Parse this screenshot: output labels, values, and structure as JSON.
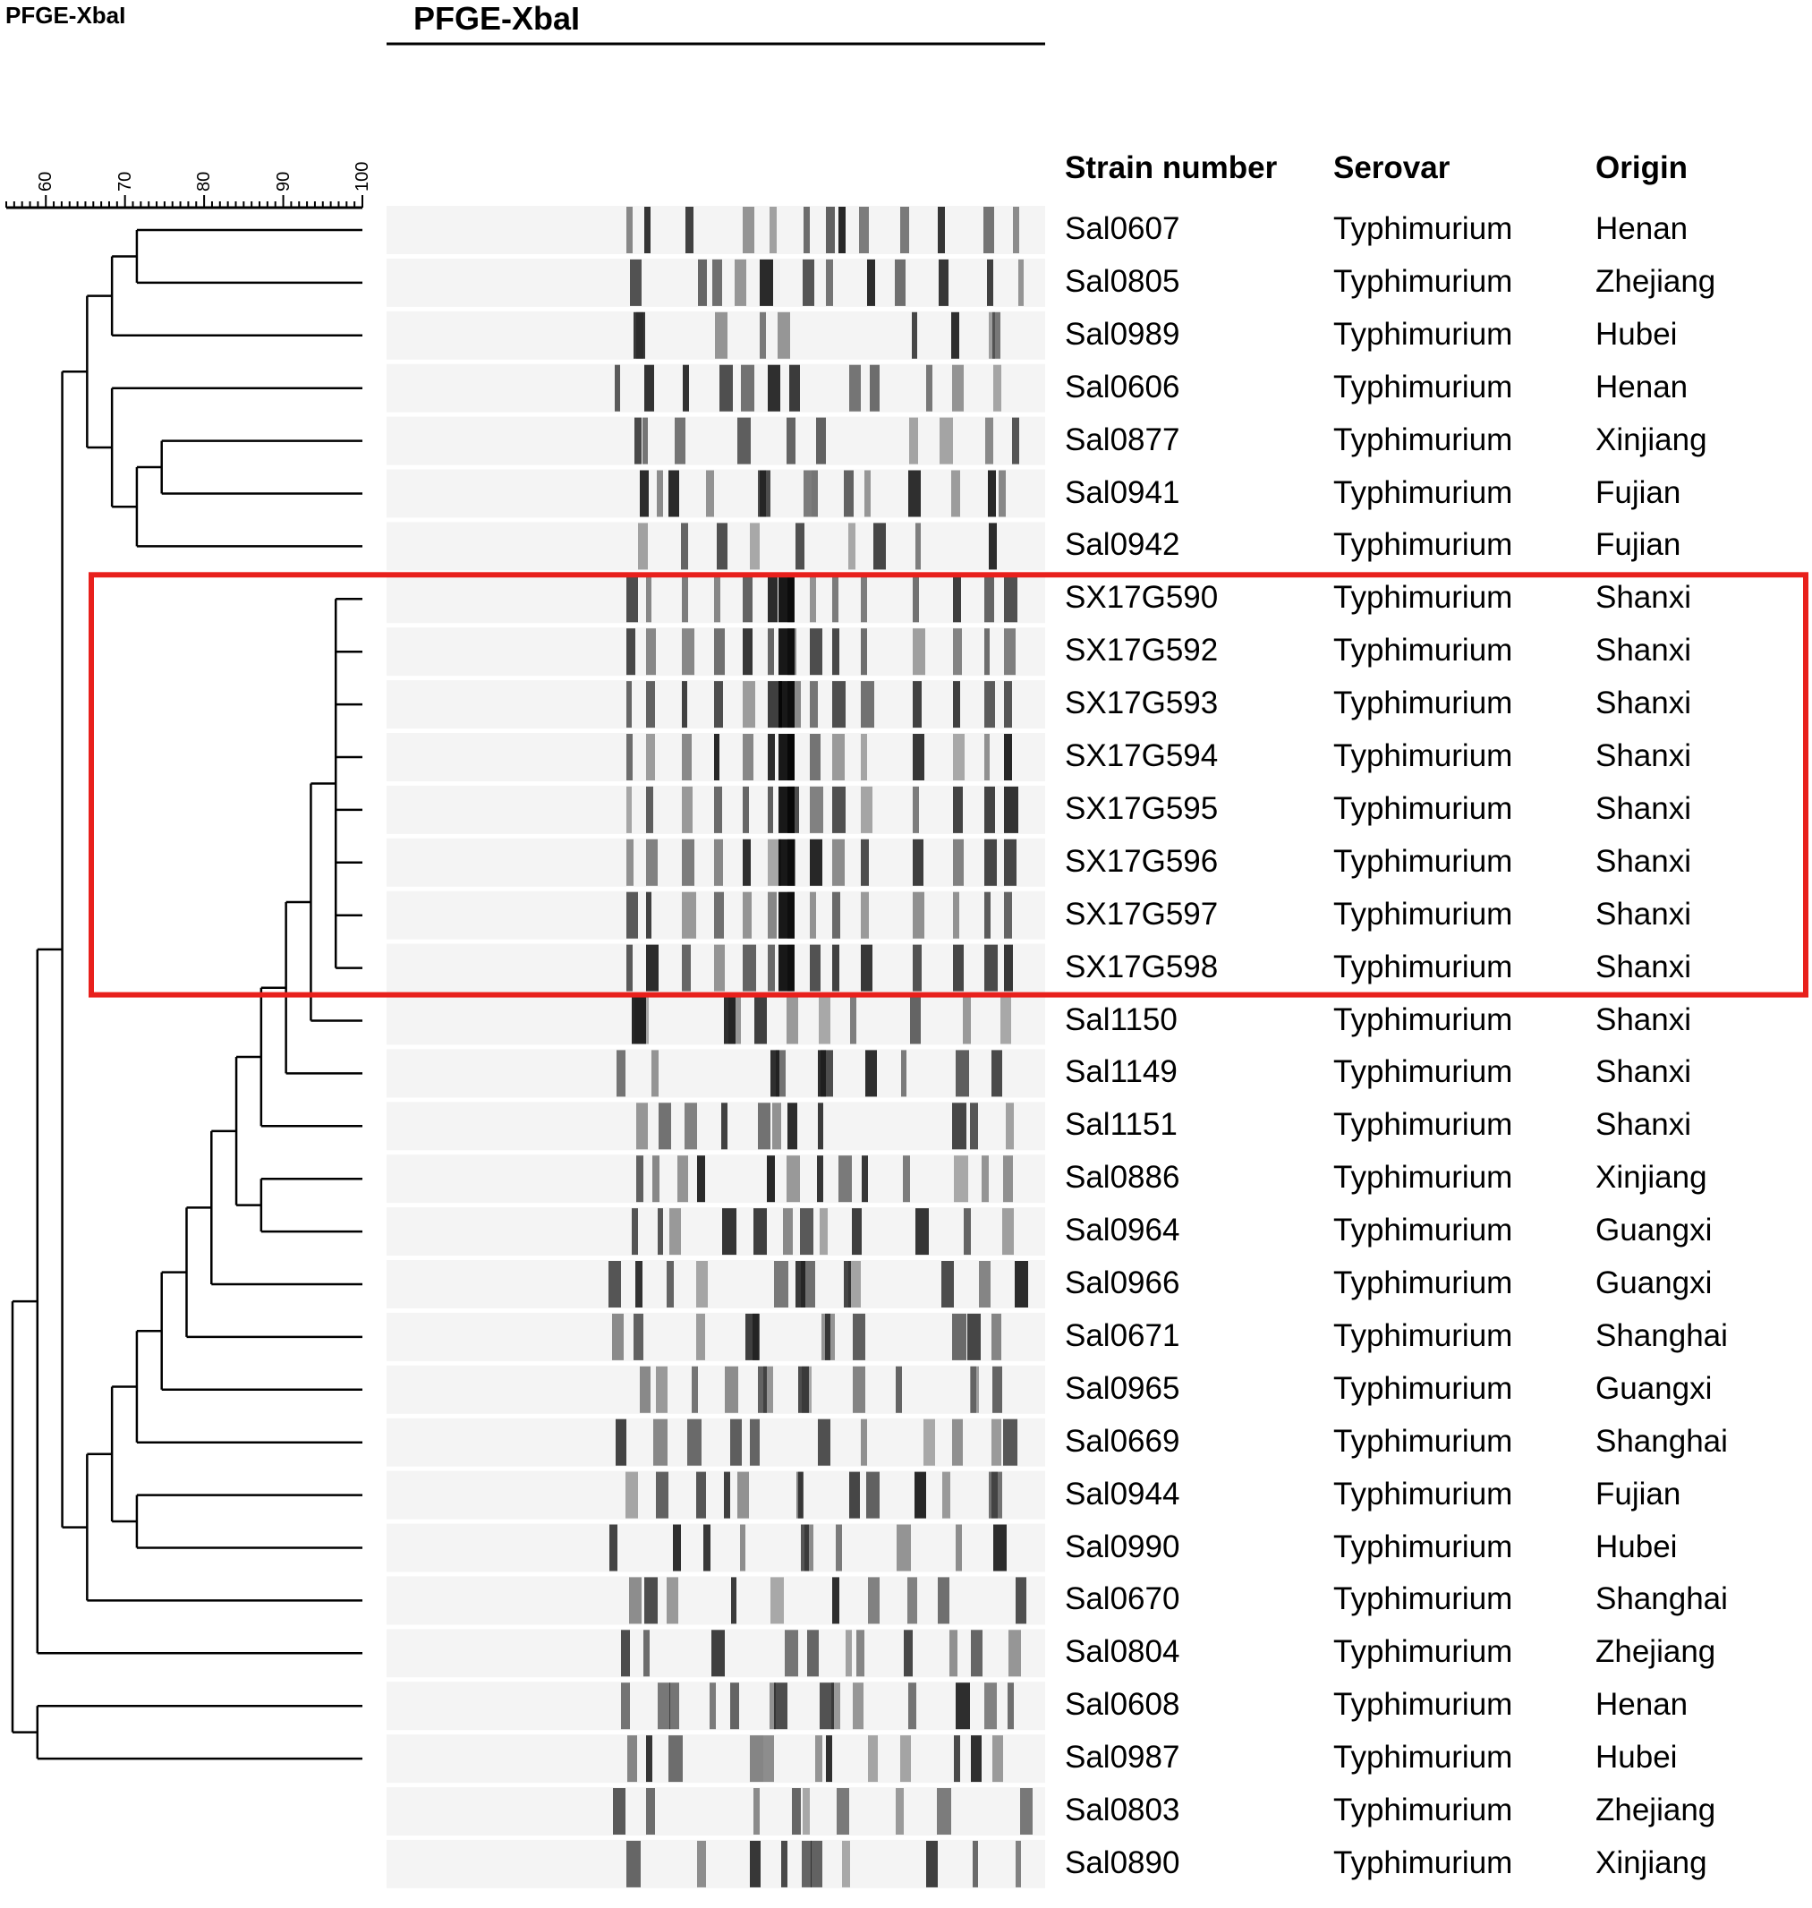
{
  "titles": {
    "corner": "PFGE-XbaI",
    "main": "PFGE-XbaI"
  },
  "scale": {
    "ticks": [
      "60",
      "70",
      "80",
      "90",
      "100"
    ]
  },
  "columns": {
    "strain": "Strain number",
    "serovar": "Serovar",
    "origin": "Origin"
  },
  "colors": {
    "highlight": "#e8201c",
    "lines": "#000000",
    "bands": "#1a1a1a"
  },
  "highlight_group": [
    "SX17G590",
    "SX17G592",
    "SX17G593",
    "SX17G594",
    "SX17G595",
    "SX17G596",
    "SX17G597",
    "SX17G598"
  ],
  "rows": [
    {
      "strain": "Sal0607",
      "serovar": "Typhimurium",
      "origin": "Henan"
    },
    {
      "strain": "Sal0805",
      "serovar": "Typhimurium",
      "origin": "Zhejiang"
    },
    {
      "strain": "Sal0989",
      "serovar": "Typhimurium",
      "origin": "Hubei"
    },
    {
      "strain": "Sal0606",
      "serovar": "Typhimurium",
      "origin": "Henan"
    },
    {
      "strain": "Sal0877",
      "serovar": "Typhimurium",
      "origin": "Xinjiang"
    },
    {
      "strain": "Sal0941",
      "serovar": "Typhimurium",
      "origin": "Fujian"
    },
    {
      "strain": "Sal0942",
      "serovar": "Typhimurium",
      "origin": "Fujian"
    },
    {
      "strain": "SX17G590",
      "serovar": "Typhimurium",
      "origin": "Shanxi"
    },
    {
      "strain": "SX17G592",
      "serovar": "Typhimurium",
      "origin": "Shanxi"
    },
    {
      "strain": "SX17G593",
      "serovar": "Typhimurium",
      "origin": "Shanxi"
    },
    {
      "strain": "SX17G594",
      "serovar": "Typhimurium",
      "origin": "Shanxi"
    },
    {
      "strain": "SX17G595",
      "serovar": "Typhimurium",
      "origin": "Shanxi"
    },
    {
      "strain": "SX17G596",
      "serovar": "Typhimurium",
      "origin": "Shanxi"
    },
    {
      "strain": "SX17G597",
      "serovar": "Typhimurium",
      "origin": "Shanxi"
    },
    {
      "strain": "SX17G598",
      "serovar": "Typhimurium",
      "origin": "Shanxi"
    },
    {
      "strain": "Sal1150",
      "serovar": "Typhimurium",
      "origin": "Shanxi"
    },
    {
      "strain": "Sal1149",
      "serovar": "Typhimurium",
      "origin": "Shanxi"
    },
    {
      "strain": "Sal1151",
      "serovar": "Typhimurium",
      "origin": "Shanxi"
    },
    {
      "strain": "Sal0886",
      "serovar": "Typhimurium",
      "origin": "Xinjiang"
    },
    {
      "strain": "Sal0964",
      "serovar": "Typhimurium",
      "origin": "Guangxi"
    },
    {
      "strain": "Sal0966",
      "serovar": "Typhimurium",
      "origin": "Guangxi"
    },
    {
      "strain": "Sal0671",
      "serovar": "Typhimurium",
      "origin": "Shanghai"
    },
    {
      "strain": "Sal0965",
      "serovar": "Typhimurium",
      "origin": "Guangxi"
    },
    {
      "strain": "Sal0669",
      "serovar": "Typhimurium",
      "origin": "Shanghai"
    },
    {
      "strain": "Sal0944",
      "serovar": "Typhimurium",
      "origin": "Fujian"
    },
    {
      "strain": "Sal0990",
      "serovar": "Typhimurium",
      "origin": "Hubei"
    },
    {
      "strain": "Sal0670",
      "serovar": "Typhimurium",
      "origin": "Shanghai"
    },
    {
      "strain": "Sal0804",
      "serovar": "Typhimurium",
      "origin": "Zhejiang"
    },
    {
      "strain": "Sal0608",
      "serovar": "Typhimurium",
      "origin": "Henan"
    },
    {
      "strain": "Sal0987",
      "serovar": "Typhimurium",
      "origin": "Hubei"
    },
    {
      "strain": "Sal0803",
      "serovar": "Typhimurium",
      "origin": "Zhejiang"
    },
    {
      "strain": "Sal0890",
      "serovar": "Typhimurium",
      "origin": "Xinjiang"
    }
  ],
  "dendrogram": {
    "tree": [
      "I",
      [
        "I",
        [
          "I",
          [
            "I",
            [
              "I",
              [
                "I",
                [
                  "L",
                  0
                ],
                [
                  "L",
                  1
                ]
              ],
              [
                "L",
                2
              ]
            ],
            [
              "I",
              [
                "L",
                3
              ],
              [
                "I",
                [
                  "I",
                  [
                    "L",
                    4
                  ],
                  [
                    "L",
                    5
                  ]
                ],
                [
                  "L",
                  6
                ]
              ]
            ]
          ],
          [
            "I",
            [
              "I",
              [
                "I",
                [
                  "I",
                  [
                    "I",
                    [
                      "I",
                      [
                        "I",
                        [
                          "I",
                          [
                            "I",
                            [
                              "I",
                              [
                                "I",
                                [
                                  "L",
                                  7
                                ],
                                [
                                  "L",
                                  8
                                ],
                                [
                                  "L",
                                  9
                                ],
                                [
                                  "L",
                                  10
                                ],
                                [
                                  "L",
                                  11
                                ],
                                [
                                  "L",
                                  12
                                ],
                                [
                                  "L",
                                  13
                                ],
                                [
                                  "L",
                                  14
                                ]
                              ],
                              [
                                "L",
                                15
                              ]
                            ],
                            [
                              "L",
                              16
                            ]
                          ],
                          [
                            "L",
                            17
                          ]
                        ],
                        [
                          "I",
                          [
                            "L",
                            18
                          ],
                          [
                            "L",
                            19
                          ]
                        ]
                      ],
                      [
                        "L",
                        20
                      ]
                    ],
                    [
                      "L",
                      21
                    ]
                  ],
                  [
                    "L",
                    22
                  ]
                ],
                [
                  "L",
                  23
                ]
              ],
              [
                "I",
                [
                  "L",
                  24
                ],
                [
                  "L",
                  25
                ]
              ]
            ],
            [
              "L",
              26
            ]
          ]
        ],
        [
          "L",
          27
        ]
      ],
      [
        "I",
        [
          "L",
          28
        ],
        [
          "L",
          29
        ]
      ]
    ]
  }
}
